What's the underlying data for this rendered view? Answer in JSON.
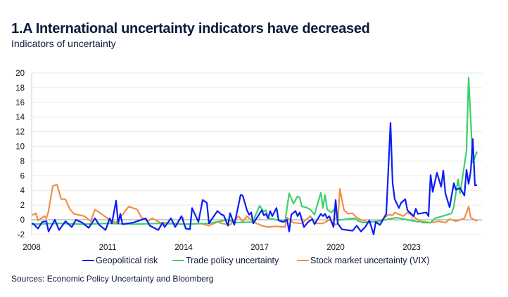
{
  "title": "1.A International uncertainty indicators have decreased",
  "subtitle": "Indicators of uncertainty",
  "source": "Sources: Economic Policy Uncertainty and Bloomberg",
  "chart_data": {
    "type": "line",
    "title": "1.A International uncertainty indicators have decreased",
    "subtitle": "Indicators of uncertainty",
    "xlabel": "",
    "ylabel": "",
    "ylim": [
      -2,
      20
    ],
    "yticks": [
      "20",
      "18",
      "16",
      "14",
      "12",
      "10",
      "8",
      "6",
      "4",
      "2",
      "0",
      "-2"
    ],
    "xticks": [
      "2008",
      "2011",
      "2014",
      "2017",
      "2020",
      "2023"
    ],
    "grid": true,
    "legend_placement": "bottom",
    "series": [
      {
        "name": "Geopolitical risk",
        "color": "#0a1ef5",
        "points": [
          [
            "2008-01",
            -0.5
          ],
          [
            "2008-02",
            -0.6
          ],
          [
            "2008-04",
            -1.2
          ],
          [
            "2008-06",
            -0.3
          ],
          [
            "2008-08",
            -0.2
          ],
          [
            "2008-09",
            -1.6
          ],
          [
            "2008-12",
            0
          ],
          [
            "2009-02",
            -1.4
          ],
          [
            "2009-05",
            -0.2
          ],
          [
            "2009-08",
            -1.0
          ],
          [
            "2009-10",
            0
          ],
          [
            "2010-01",
            -0.4
          ],
          [
            "2010-04",
            -1.1
          ],
          [
            "2010-07",
            0.2
          ],
          [
            "2010-09",
            -0.7
          ],
          [
            "2010-12",
            -1.4
          ],
          [
            "2011-02",
            0.2
          ],
          [
            "2011-03",
            -0.5
          ],
          [
            "2011-05",
            2.6
          ],
          [
            "2011-06",
            -0.5
          ],
          [
            "2011-07",
            0.8
          ],
          [
            "2011-08",
            -0.6
          ],
          [
            "2012-01",
            -0.4
          ],
          [
            "2012-07",
            0.2
          ],
          [
            "2012-09",
            -0.8
          ],
          [
            "2013-01",
            -1.4
          ],
          [
            "2013-03",
            -0.4
          ],
          [
            "2013-04",
            -1.0
          ],
          [
            "2013-07",
            0.2
          ],
          [
            "2013-09",
            -1.0
          ],
          [
            "2013-12",
            0.5
          ],
          [
            "2014-02",
            -1.2
          ],
          [
            "2014-04",
            -1.3
          ],
          [
            "2014-05",
            1.6
          ],
          [
            "2014-08",
            -0.3
          ],
          [
            "2014-10",
            2.7
          ],
          [
            "2014-12",
            2.3
          ],
          [
            "2015-01",
            -0.5
          ],
          [
            "2015-05",
            1.2
          ],
          [
            "2015-07",
            0.7
          ],
          [
            "2015-08",
            0.6
          ],
          [
            "2015-10",
            -0.8
          ],
          [
            "2015-11",
            0.9
          ],
          [
            "2016-01",
            -0.7
          ],
          [
            "2016-04",
            3.4
          ],
          [
            "2016-05",
            3.3
          ],
          [
            "2016-07",
            1.3
          ],
          [
            "2016-08",
            0.7
          ],
          [
            "2016-09",
            1.0
          ],
          [
            "2016-10",
            -0.5
          ],
          [
            "2017-02",
            1.3
          ],
          [
            "2017-03",
            0.6
          ],
          [
            "2017-04",
            0.8
          ],
          [
            "2017-05",
            0.2
          ],
          [
            "2017-06",
            1.2
          ],
          [
            "2017-07",
            0.5
          ],
          [
            "2017-09",
            1.6
          ],
          [
            "2017-10",
            -0.1
          ],
          [
            "2017-12",
            -0.3
          ],
          [
            "2018-02",
            0
          ],
          [
            "2018-03",
            -1.6
          ],
          [
            "2018-04",
            0.7
          ],
          [
            "2018-06",
            1.2
          ],
          [
            "2018-07",
            0.5
          ],
          [
            "2018-08",
            1.0
          ],
          [
            "2018-10",
            -1.0
          ],
          [
            "2018-12",
            -0.3
          ],
          [
            "2019-02",
            0.1
          ],
          [
            "2019-03",
            -0.6
          ],
          [
            "2019-06",
            0.8
          ],
          [
            "2019-07",
            0.5
          ],
          [
            "2019-08",
            0.8
          ],
          [
            "2019-09",
            0.2
          ],
          [
            "2019-10",
            0.5
          ],
          [
            "2019-12",
            -1.0
          ],
          [
            "2020-01",
            2.7
          ],
          [
            "2020-02",
            -0.5
          ],
          [
            "2020-04",
            -1.3
          ],
          [
            "2020-09",
            -1.5
          ],
          [
            "2020-11",
            -0.8
          ],
          [
            "2021-01",
            -1.6
          ],
          [
            "2021-03",
            -1.0
          ],
          [
            "2021-05",
            -0.1
          ],
          [
            "2021-07",
            -2.0
          ],
          [
            "2021-08",
            -0.3
          ],
          [
            "2021-10",
            -0.7
          ],
          [
            "2022-01",
            0.8
          ],
          [
            "2022-03",
            13.2
          ],
          [
            "2022-04",
            5.0
          ],
          [
            "2022-05",
            2.8
          ],
          [
            "2022-07",
            1.6
          ],
          [
            "2022-08",
            2.3
          ],
          [
            "2022-10",
            2.8
          ],
          [
            "2022-11",
            1.3
          ],
          [
            "2023-02",
            0.5
          ],
          [
            "2023-03",
            1.5
          ],
          [
            "2023-04",
            0.8
          ],
          [
            "2023-08",
            1.0
          ],
          [
            "2023-09",
            0.5
          ],
          [
            "2023-10",
            6.1
          ],
          [
            "2023-11",
            3.8
          ],
          [
            "2024-01",
            6.4
          ],
          [
            "2024-03",
            4.5
          ],
          [
            "2024-04",
            6.7
          ],
          [
            "2024-05",
            3.6
          ],
          [
            "2024-07",
            1.7
          ],
          [
            "2024-09",
            5.0
          ],
          [
            "2024-10",
            4.1
          ],
          [
            "2024-12",
            4.3
          ],
          [
            "2025-02",
            3.3
          ],
          [
            "2025-03",
            6.8
          ],
          [
            "2025-04",
            4.9
          ],
          [
            "2025-05",
            6.6
          ],
          [
            "2025-06",
            11.0
          ],
          [
            "2025-07",
            4.7
          ],
          [
            "2025-08",
            4.7
          ]
        ]
      },
      {
        "name": "Trade policy uncertainty",
        "color": "#3ecf6c",
        "points": [
          [
            "2008-01",
            -0.6
          ],
          [
            "2009-01",
            -0.5
          ],
          [
            "2010-01",
            -0.6
          ],
          [
            "2011-01",
            -0.5
          ],
          [
            "2012-01",
            -0.6
          ],
          [
            "2013-01",
            -0.5
          ],
          [
            "2014-01",
            -0.6
          ],
          [
            "2015-01",
            -0.5
          ],
          [
            "2015-10",
            0
          ],
          [
            "2016-01",
            -0.4
          ],
          [
            "2016-10",
            -0.3
          ],
          [
            "2016-11",
            0.6
          ],
          [
            "2017-01",
            1.9
          ],
          [
            "2017-03",
            1.1
          ],
          [
            "2017-04",
            1.3
          ],
          [
            "2017-05",
            0.2
          ],
          [
            "2017-09",
            0
          ],
          [
            "2018-01",
            -0.3
          ],
          [
            "2018-03",
            3.6
          ],
          [
            "2018-05",
            2.2
          ],
          [
            "2018-07",
            3.2
          ],
          [
            "2018-08",
            3.0
          ],
          [
            "2018-09",
            1.8
          ],
          [
            "2018-11",
            1.7
          ],
          [
            "2019-01",
            1.4
          ],
          [
            "2019-03",
            0.7
          ],
          [
            "2019-06",
            3.7
          ],
          [
            "2019-07",
            1.6
          ],
          [
            "2019-08",
            3.4
          ],
          [
            "2019-09",
            1.4
          ],
          [
            "2019-11",
            1.0
          ],
          [
            "2020-01",
            1.6
          ],
          [
            "2020-02",
            0
          ],
          [
            "2020-04",
            0
          ],
          [
            "2020-10",
            0.2
          ],
          [
            "2020-12",
            -0.2
          ],
          [
            "2021-02",
            -0.4
          ],
          [
            "2021-09",
            -0.2
          ],
          [
            "2022-04",
            0.2
          ],
          [
            "2022-06",
            0.3
          ],
          [
            "2022-11",
            0
          ],
          [
            "2023-04",
            -0.3
          ],
          [
            "2023-05",
            -0.2
          ],
          [
            "2023-10",
            -0.4
          ],
          [
            "2023-12",
            0.2
          ],
          [
            "2024-05",
            0.6
          ],
          [
            "2024-08",
            0.9
          ],
          [
            "2024-09",
            1.8
          ],
          [
            "2024-11",
            5.5
          ],
          [
            "2024-12",
            3.6
          ],
          [
            "2025-03",
            9.4
          ],
          [
            "2025-04",
            19.4
          ],
          [
            "2025-06",
            7.8
          ],
          [
            "2025-08",
            9.3
          ]
        ]
      },
      {
        "name": "Stock market uncertainty (VIX)",
        "color": "#f28e48",
        "points": [
          [
            "2008-01",
            0.7
          ],
          [
            "2008-02",
            0.7
          ],
          [
            "2008-03",
            0.9
          ],
          [
            "2008-04",
            -0.1
          ],
          [
            "2008-07",
            0.5
          ],
          [
            "2008-08",
            0.2
          ],
          [
            "2008-09",
            1.2
          ],
          [
            "2008-11",
            4.6
          ],
          [
            "2009-01",
            4.8
          ],
          [
            "2009-03",
            2.8
          ],
          [
            "2009-05",
            2.8
          ],
          [
            "2009-07",
            1.5
          ],
          [
            "2009-09",
            0.8
          ],
          [
            "2010-02",
            0.5
          ],
          [
            "2010-05",
            -0.2
          ],
          [
            "2010-07",
            1.4
          ],
          [
            "2010-10",
            0.8
          ],
          [
            "2011-02",
            0
          ],
          [
            "2011-05",
            -0.4
          ],
          [
            "2011-11",
            1.8
          ],
          [
            "2012-03",
            1.4
          ],
          [
            "2012-05",
            0.3
          ],
          [
            "2012-08",
            -0.2
          ],
          [
            "2012-10",
            0.2
          ],
          [
            "2013-02",
            -0.4
          ],
          [
            "2013-08",
            -0.5
          ],
          [
            "2014-02",
            -0.6
          ],
          [
            "2014-09",
            -0.5
          ],
          [
            "2015-01",
            -0.8
          ],
          [
            "2015-05",
            -0.3
          ],
          [
            "2015-07",
            -0.5
          ],
          [
            "2015-11",
            -0.7
          ],
          [
            "2016-03",
            0.5
          ],
          [
            "2016-05",
            -0.3
          ],
          [
            "2016-07",
            0.5
          ],
          [
            "2016-10",
            -0.3
          ],
          [
            "2017-02",
            -0.8
          ],
          [
            "2017-05",
            -1.0
          ],
          [
            "2017-09",
            -0.9
          ],
          [
            "2018-01",
            -1.0
          ],
          [
            "2018-02",
            0.3
          ],
          [
            "2018-05",
            -0.4
          ],
          [
            "2018-09",
            -0.5
          ],
          [
            "2019-01",
            0.5
          ],
          [
            "2019-03",
            -0.5
          ],
          [
            "2019-07",
            -0.5
          ],
          [
            "2019-10",
            0
          ],
          [
            "2020-01",
            -0.7
          ],
          [
            "2020-02",
            -0.5
          ],
          [
            "2020-03",
            4.2
          ],
          [
            "2020-05",
            1.3
          ],
          [
            "2020-07",
            0.8
          ],
          [
            "2020-09",
            0.9
          ],
          [
            "2020-11",
            0.3
          ],
          [
            "2021-01",
            0
          ],
          [
            "2021-04",
            -0.3
          ],
          [
            "2021-10",
            -0.2
          ],
          [
            "2022-02",
            0.7
          ],
          [
            "2022-04",
            0.6
          ],
          [
            "2022-05",
            1.0
          ],
          [
            "2022-09",
            0.5
          ],
          [
            "2022-11",
            1.0
          ],
          [
            "2023-04",
            0
          ],
          [
            "2023-06",
            -0.4
          ],
          [
            "2023-10",
            -0.4
          ],
          [
            "2024-02",
            -0.2
          ],
          [
            "2024-05",
            -0.4
          ],
          [
            "2024-07",
            0.1
          ],
          [
            "2024-10",
            -0.2
          ],
          [
            "2025-02",
            0.2
          ],
          [
            "2025-04",
            1.8
          ],
          [
            "2025-05",
            0.3
          ],
          [
            "2025-08",
            -0.2
          ]
        ]
      }
    ]
  }
}
